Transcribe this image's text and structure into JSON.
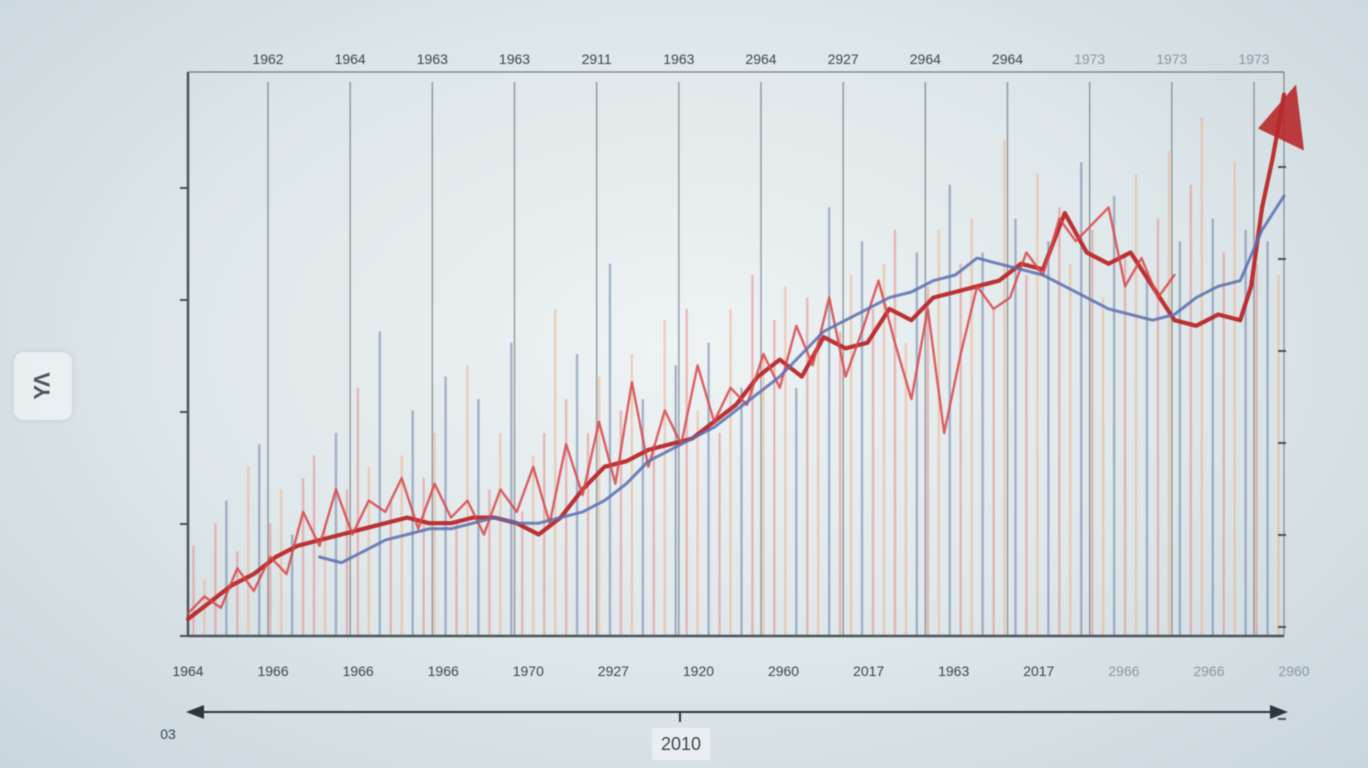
{
  "chart_data": {
    "type": "line",
    "title": "",
    "xlabel": "2010",
    "ylabel": "ΥΛ",
    "grid": true,
    "legend": "none",
    "top_tick_labels": [
      "1962",
      "1964",
      "1963",
      "1963",
      "2911",
      "1963",
      "2964",
      "2927",
      "2964",
      "2964",
      "1973",
      "1973",
      "1973"
    ],
    "bottom_tick_labels": [
      "1964",
      "1966",
      "1966",
      "1966",
      "1970",
      "2927",
      "1920",
      "2960",
      "2017",
      "1963",
      "2017",
      "2966",
      "2966",
      "2960"
    ],
    "y_tick_labels": [
      "",
      "",
      "",
      "",
      "",
      "",
      "03"
    ],
    "colors": {
      "trend_red": "#b8282a",
      "volatile_red": "#d9464a",
      "blue_series": "#5a6fb0",
      "light_red_bars": "#e58a86",
      "light_orange_bars": "#eeb08a",
      "blue_bars": "#6d7fa6",
      "grid": "#4a5359",
      "axis": "#4a5359"
    },
    "ylim": [
      0,
      100
    ],
    "xlim": [
      0,
      100
    ],
    "series": [
      {
        "style": "trend-red",
        "x": [
          0,
          2,
          4,
          6,
          8,
          10,
          12,
          14,
          16,
          18,
          20,
          22,
          24,
          26,
          28,
          30,
          32,
          34,
          36,
          38,
          40,
          42,
          44,
          46,
          48,
          50,
          52,
          54,
          56,
          58,
          60,
          62,
          64,
          66,
          68,
          70,
          72,
          74,
          76,
          78,
          80,
          82,
          84,
          86,
          88,
          90,
          92,
          94,
          96,
          97,
          98,
          99,
          100
        ],
        "values": [
          3,
          6,
          9,
          11,
          14,
          16,
          17,
          18,
          19,
          20,
          21,
          20,
          20,
          21,
          21,
          20,
          18,
          21,
          26,
          30,
          31,
          33,
          34,
          35,
          38,
          41,
          46,
          49,
          46,
          53,
          51,
          52,
          58,
          56,
          60,
          61,
          62,
          63,
          66,
          65,
          75,
          68,
          66,
          68,
          62,
          56,
          55,
          57,
          56,
          62,
          76,
          85,
          96
        ]
      },
      {
        "style": "volatile-red",
        "x": [
          0,
          1.5,
          3,
          4.5,
          6,
          7.5,
          9,
          10.5,
          12,
          13.5,
          15,
          16.5,
          18,
          19.5,
          21,
          22.5,
          24,
          25.5,
          27,
          28.5,
          30,
          31.5,
          33,
          34.5,
          36,
          37.5,
          39,
          40.5,
          42,
          43.5,
          45,
          46.5,
          48,
          49.5,
          51,
          52.5,
          54,
          55.5,
          57,
          58.5,
          60,
          61.5,
          63,
          64.5,
          66,
          67.5,
          69,
          70.5,
          72,
          73.5,
          75,
          76.5,
          78,
          79.5,
          81,
          82.5,
          84,
          85.5,
          87,
          88.5,
          90
        ],
        "values": [
          4,
          7,
          5,
          12,
          8,
          14,
          11,
          22,
          16,
          26,
          18,
          24,
          22,
          28,
          19,
          27,
          21,
          24,
          18,
          26,
          22,
          30,
          20,
          34,
          25,
          38,
          27,
          45,
          30,
          40,
          34,
          48,
          38,
          44,
          41,
          50,
          44,
          55,
          48,
          60,
          46,
          54,
          63,
          52,
          42,
          58,
          36,
          50,
          62,
          58,
          60,
          68,
          64,
          74,
          70,
          73,
          76,
          62,
          67,
          60,
          64
        ]
      },
      {
        "style": "blue",
        "x": [
          12,
          14,
          16,
          18,
          20,
          22,
          24,
          26,
          28,
          30,
          32,
          34,
          36,
          38,
          40,
          42,
          44,
          46,
          48,
          50,
          52,
          54,
          56,
          58,
          60,
          62,
          64,
          66,
          68,
          70,
          72,
          74,
          76,
          78,
          80,
          82,
          84,
          86,
          88,
          90,
          92,
          94,
          96,
          98,
          100
        ],
        "values": [
          14,
          13,
          15,
          17,
          18,
          19,
          19,
          20,
          21,
          20,
          20,
          21,
          22,
          24,
          27,
          31,
          33,
          35,
          37,
          40,
          43,
          46,
          50,
          54,
          56,
          58,
          60,
          61,
          63,
          64,
          67,
          66,
          65,
          64,
          62,
          60,
          58,
          57,
          56,
          57,
          60,
          62,
          63,
          72,
          78
        ]
      }
    ],
    "bars": [
      {
        "x": 0.5,
        "value": 16,
        "style": "light-red"
      },
      {
        "x": 1.5,
        "value": 10,
        "style": "light-orange"
      },
      {
        "x": 2.5,
        "value": 20,
        "style": "light-red"
      },
      {
        "x": 3.5,
        "value": 24,
        "style": "blue"
      },
      {
        "x": 4.5,
        "value": 15,
        "style": "light-red"
      },
      {
        "x": 5.5,
        "value": 30,
        "style": "light-orange"
      },
      {
        "x": 6.5,
        "value": 34,
        "style": "blue"
      },
      {
        "x": 7.5,
        "value": 20,
        "style": "light-red"
      },
      {
        "x": 8.5,
        "value": 26,
        "style": "light-orange"
      },
      {
        "x": 9.5,
        "value": 18,
        "style": "blue"
      },
      {
        "x": 10.5,
        "value": 28,
        "style": "light-red"
      },
      {
        "x": 11.5,
        "value": 32,
        "style": "light-red"
      },
      {
        "x": 12.5,
        "value": 20,
        "style": "light-orange"
      },
      {
        "x": 13.5,
        "value": 36,
        "style": "blue"
      },
      {
        "x": 14.5,
        "value": 26,
        "style": "light-red"
      },
      {
        "x": 15.5,
        "value": 44,
        "style": "light-red"
      },
      {
        "x": 16.5,
        "value": 30,
        "style": "light-orange"
      },
      {
        "x": 17.5,
        "value": 54,
        "style": "blue"
      },
      {
        "x": 18.5,
        "value": 24,
        "style": "light-red"
      },
      {
        "x": 19.5,
        "value": 32,
        "style": "light-orange"
      },
      {
        "x": 20.5,
        "value": 40,
        "style": "blue"
      },
      {
        "x": 21.5,
        "value": 28,
        "style": "light-red"
      },
      {
        "x": 22.5,
        "value": 36,
        "style": "light-orange"
      },
      {
        "x": 23.5,
        "value": 46,
        "style": "blue"
      },
      {
        "x": 24.5,
        "value": 20,
        "style": "light-red"
      },
      {
        "x": 25.5,
        "value": 48,
        "style": "light-orange"
      },
      {
        "x": 26.5,
        "value": 42,
        "style": "blue"
      },
      {
        "x": 27.5,
        "value": 26,
        "style": "light-red"
      },
      {
        "x": 28.5,
        "value": 36,
        "style": "light-orange"
      },
      {
        "x": 29.5,
        "value": 52,
        "style": "blue"
      },
      {
        "x": 30.5,
        "value": 22,
        "style": "light-red"
      },
      {
        "x": 31.5,
        "value": 32,
        "style": "light-orange"
      },
      {
        "x": 32.5,
        "value": 36,
        "style": "light-red"
      },
      {
        "x": 33.5,
        "value": 58,
        "style": "light-orange"
      },
      {
        "x": 34.5,
        "value": 42,
        "style": "light-red"
      },
      {
        "x": 35.5,
        "value": 50,
        "style": "blue"
      },
      {
        "x": 36.5,
        "value": 36,
        "style": "light-red"
      },
      {
        "x": 37.5,
        "value": 46,
        "style": "light-orange"
      },
      {
        "x": 38.5,
        "value": 66,
        "style": "blue"
      },
      {
        "x": 39.5,
        "value": 40,
        "style": "light-red"
      },
      {
        "x": 40.5,
        "value": 50,
        "style": "light-orange"
      },
      {
        "x": 41.5,
        "value": 42,
        "style": "blue"
      },
      {
        "x": 42.5,
        "value": 34,
        "style": "light-red"
      },
      {
        "x": 43.5,
        "value": 56,
        "style": "light-orange"
      },
      {
        "x": 44.5,
        "value": 48,
        "style": "blue"
      },
      {
        "x": 45.5,
        "value": 58,
        "style": "light-red"
      },
      {
        "x": 46.5,
        "value": 40,
        "style": "light-orange"
      },
      {
        "x": 47.5,
        "value": 52,
        "style": "blue"
      },
      {
        "x": 48.5,
        "value": 36,
        "style": "light-red"
      },
      {
        "x": 49.5,
        "value": 58,
        "style": "light-orange"
      },
      {
        "x": 50.5,
        "value": 44,
        "style": "blue"
      },
      {
        "x": 51.5,
        "value": 64,
        "style": "light-red"
      },
      {
        "x": 52.5,
        "value": 50,
        "style": "light-orange"
      },
      {
        "x": 53.5,
        "value": 56,
        "style": "light-red"
      },
      {
        "x": 54.5,
        "value": 62,
        "style": "light-orange"
      },
      {
        "x": 55.5,
        "value": 44,
        "style": "blue"
      },
      {
        "x": 56.5,
        "value": 60,
        "style": "light-red"
      },
      {
        "x": 57.5,
        "value": 52,
        "style": "light-orange"
      },
      {
        "x": 58.5,
        "value": 76,
        "style": "blue"
      },
      {
        "x": 59.5,
        "value": 54,
        "style": "light-red"
      },
      {
        "x": 60.5,
        "value": 64,
        "style": "light-orange"
      },
      {
        "x": 61.5,
        "value": 70,
        "style": "blue"
      },
      {
        "x": 62.5,
        "value": 58,
        "style": "light-red"
      },
      {
        "x": 63.5,
        "value": 66,
        "style": "light-orange"
      },
      {
        "x": 64.5,
        "value": 72,
        "style": "light-red"
      },
      {
        "x": 65.5,
        "value": 52,
        "style": "light-orange"
      },
      {
        "x": 66.5,
        "value": 68,
        "style": "blue"
      },
      {
        "x": 67.5,
        "value": 62,
        "style": "light-red"
      },
      {
        "x": 68.5,
        "value": 72,
        "style": "light-orange"
      },
      {
        "x": 69.5,
        "value": 80,
        "style": "blue"
      },
      {
        "x": 70.5,
        "value": 66,
        "style": "light-red"
      },
      {
        "x": 71.5,
        "value": 74,
        "style": "light-orange"
      },
      {
        "x": 72.5,
        "value": 68,
        "style": "blue"
      },
      {
        "x": 73.5,
        "value": 58,
        "style": "light-red"
      },
      {
        "x": 74.5,
        "value": 88,
        "style": "light-orange"
      },
      {
        "x": 75.5,
        "value": 74,
        "style": "blue"
      },
      {
        "x": 76.5,
        "value": 64,
        "style": "light-red"
      },
      {
        "x": 77.5,
        "value": 82,
        "style": "light-orange"
      },
      {
        "x": 78.5,
        "value": 70,
        "style": "blue"
      },
      {
        "x": 79.5,
        "value": 76,
        "style": "light-red"
      },
      {
        "x": 80.5,
        "value": 66,
        "style": "light-orange"
      },
      {
        "x": 81.5,
        "value": 84,
        "style": "blue"
      },
      {
        "x": 82.5,
        "value": 72,
        "style": "light-red"
      },
      {
        "x": 83.5,
        "value": 60,
        "style": "light-orange"
      },
      {
        "x": 84.5,
        "value": 78,
        "style": "blue"
      },
      {
        "x": 85.5,
        "value": 68,
        "style": "light-red"
      },
      {
        "x": 86.5,
        "value": 82,
        "style": "light-orange"
      },
      {
        "x": 87.5,
        "value": 64,
        "style": "blue"
      },
      {
        "x": 88.5,
        "value": 74,
        "style": "light-red"
      },
      {
        "x": 89.5,
        "value": 86,
        "style": "light-orange"
      },
      {
        "x": 90.5,
        "value": 70,
        "style": "blue"
      },
      {
        "x": 91.5,
        "value": 80,
        "style": "light-red"
      },
      {
        "x": 92.5,
        "value": 92,
        "style": "light-orange"
      },
      {
        "x": 93.5,
        "value": 74,
        "style": "blue"
      },
      {
        "x": 94.5,
        "value": 68,
        "style": "light-red"
      },
      {
        "x": 95.5,
        "value": 84,
        "style": "light-orange"
      },
      {
        "x": 96.5,
        "value": 72,
        "style": "blue"
      },
      {
        "x": 97.5,
        "value": 66,
        "style": "light-red"
      },
      {
        "x": 98.5,
        "value": 70,
        "style": "blue"
      },
      {
        "x": 99.5,
        "value": 64,
        "style": "light-orange"
      }
    ]
  }
}
